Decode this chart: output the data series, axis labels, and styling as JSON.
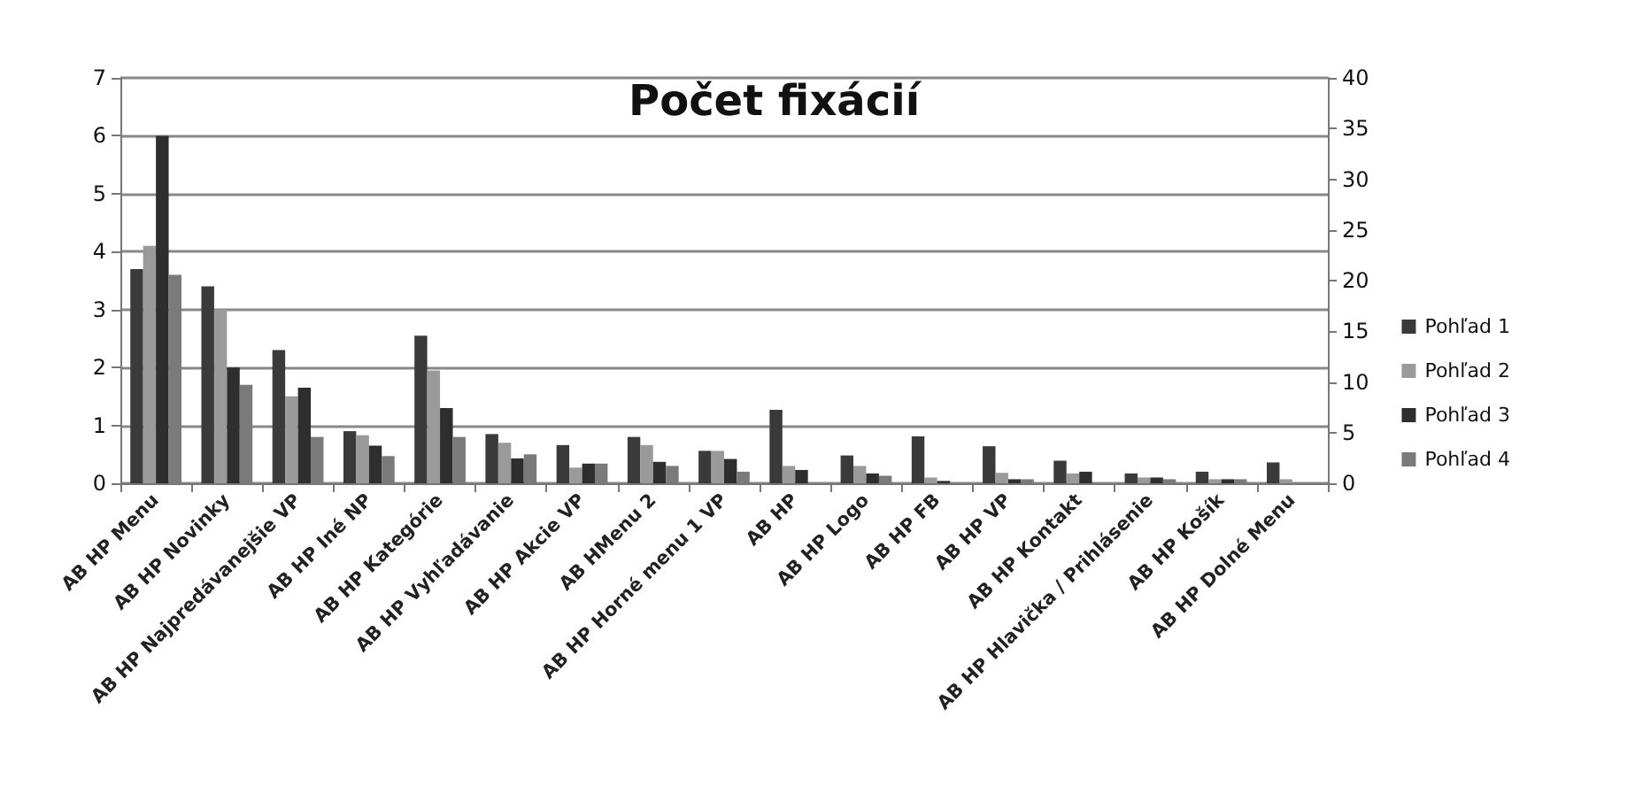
{
  "chart_data": {
    "type": "bar",
    "title": "Počet fixácií",
    "categories": [
      "AB HP Menu",
      "AB HP Novinky",
      "AB HP Najpredávanejšie VP",
      "AB HP Iné NP",
      "AB HP Kategórie",
      "AB HP Vyhľadávanie",
      "AB HP Akcie VP",
      "AB HMenu 2",
      "AB HP Horné menu 1 VP",
      "AB HP",
      "AB HP Logo",
      "AB HP FB",
      "AB HP VP",
      "AB HP Kontakt",
      "AB HP Hlavička / Prihlásenie",
      "AB HP Košík",
      "AB HP Dolné Menu"
    ],
    "series": [
      {
        "name": "Pohľad 1",
        "color": "#3a3a3a",
        "values": [
          3.7,
          3.4,
          2.3,
          0.9,
          2.55,
          0.85,
          0.66,
          0.8,
          0.56,
          1.27,
          0.48,
          0.81,
          0.64,
          0.39,
          0.17,
          0.2,
          0.36
        ]
      },
      {
        "name": "Pohľad 2",
        "color": "#9a9a9a",
        "values": [
          4.1,
          3.0,
          1.5,
          0.83,
          1.95,
          0.7,
          0.27,
          0.66,
          0.56,
          0.3,
          0.3,
          0.1,
          0.18,
          0.17,
          0.1,
          0.07,
          0.07
        ]
      },
      {
        "name": "Pohľad 3",
        "color": "#2e2e2e",
        "values": [
          6.0,
          2.0,
          1.65,
          0.65,
          1.3,
          0.43,
          0.34,
          0.37,
          0.42,
          0.23,
          0.17,
          0.04,
          0.07,
          0.2,
          0.1,
          0.07,
          0
        ]
      },
      {
        "name": "Pohľad 4",
        "color": "#7a7a7a",
        "values": [
          3.6,
          1.7,
          0.8,
          0.47,
          0.8,
          0.5,
          0.34,
          0.3,
          0.2,
          null,
          0.13,
          null,
          0.07,
          null,
          0.07,
          0.07,
          0
        ]
      }
    ],
    "ylim": [
      0,
      7
    ],
    "yticks": [
      0,
      1,
      2,
      3,
      4,
      5,
      6,
      7
    ],
    "y2lim": [
      0,
      40
    ],
    "y2ticks": [
      0,
      5,
      10,
      15,
      20,
      25,
      30,
      35,
      40
    ],
    "grid": "y",
    "legend": "right"
  }
}
